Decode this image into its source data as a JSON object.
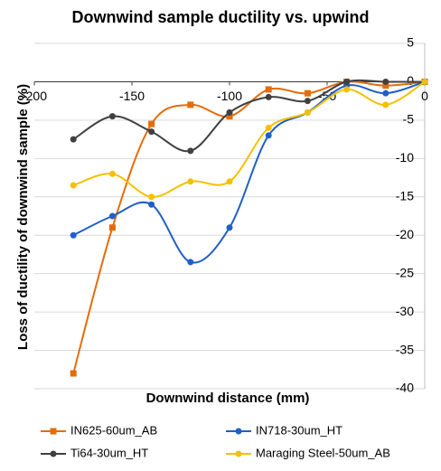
{
  "chart_data": {
    "type": "line",
    "title": "Downwind sample ductility vs. upwind",
    "x_label": "Downwind distance (mm)",
    "y_label": "Loss of ductility of downwind sample (%)",
    "x": [
      -180,
      -160,
      -140,
      -120,
      -100,
      -80,
      -60,
      -40,
      -20,
      0
    ],
    "series": [
      {
        "name": "IN625-60um_AB",
        "color": "#e46c0a",
        "marker": "square",
        "values": [
          -38,
          -19,
          -5.5,
          -3,
          -4.5,
          -1,
          -1.5,
          0,
          -0.5,
          0
        ]
      },
      {
        "name": "IN718-30um_HT",
        "color": "#1f5fc8",
        "marker": "circle",
        "values": [
          -20,
          -17.5,
          -16,
          -23.5,
          -19,
          -7,
          -4,
          -0.5,
          -1.5,
          0
        ]
      },
      {
        "name": "Ti64-30um_HT",
        "color": "#404040",
        "marker": "circle",
        "values": [
          -7.5,
          -4.5,
          -6.5,
          -9,
          -4,
          -2,
          -2.5,
          0,
          0,
          0
        ]
      },
      {
        "name": "Maraging Steel-50um_AB",
        "color": "#f5c000",
        "marker": "circle",
        "values": [
          -13.5,
          -12,
          -15,
          -13,
          -13,
          -6,
          -4,
          -1,
          -3,
          0
        ]
      }
    ],
    "xlim": [
      -200,
      0
    ],
    "xticks": [
      -200,
      -150,
      -100,
      -50,
      0
    ],
    "ylim": [
      -40,
      5
    ],
    "yticks": [
      5,
      0,
      -5,
      -10,
      -15,
      -20,
      -25,
      -30,
      -35,
      -40
    ],
    "grid": true,
    "legend": "bottom"
  }
}
